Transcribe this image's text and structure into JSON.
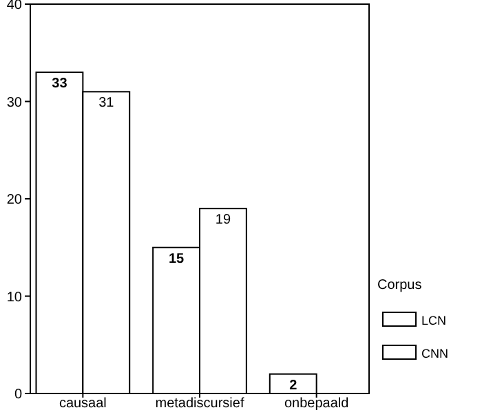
{
  "chart_data": {
    "type": "bar",
    "categories": [
      "causaal",
      "metadiscursief",
      "onbepaald"
    ],
    "series": [
      {
        "name": "LCN",
        "color": "#ffffff",
        "values": [
          33,
          15,
          2
        ]
      },
      {
        "name": "CNN",
        "color": "#ffffff",
        "values": [
          31,
          19,
          null
        ]
      }
    ],
    "ylim": [
      0,
      40
    ],
    "yticks": [
      0,
      10,
      20,
      30,
      40
    ],
    "grid": false,
    "legend": "right",
    "legend_title": "Corpus",
    "data_labels": true
  }
}
